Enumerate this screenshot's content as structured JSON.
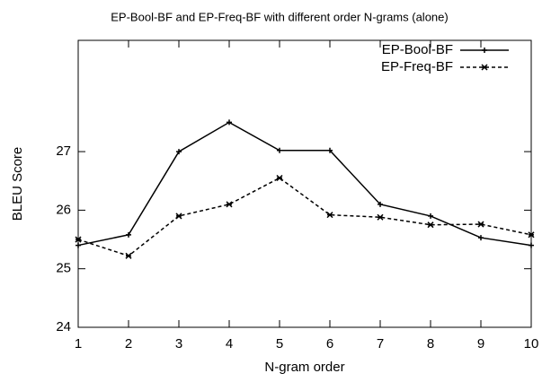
{
  "chart_data": {
    "type": "line",
    "title": "EP-Bool-BF and EP-Freq-BF with different order N-grams (alone)",
    "x_label": "N-gram order",
    "y_label": "BLEU Score",
    "x": [
      1,
      2,
      3,
      4,
      5,
      6,
      7,
      8,
      9,
      10
    ],
    "series": [
      {
        "name": "EP-Bool-BF",
        "color": "#000000",
        "dash": "solid",
        "marker": "plus",
        "values": [
          25.4,
          25.58,
          27.0,
          27.5,
          27.02,
          27.02,
          26.1,
          25.9,
          25.53,
          25.4
        ]
      },
      {
        "name": "EP-Freq-BF",
        "color": "#000000",
        "dash": "dashed",
        "marker": "cross",
        "values": [
          25.5,
          25.22,
          25.9,
          26.1,
          26.55,
          25.92,
          25.88,
          25.75,
          25.76,
          25.58
        ]
      }
    ],
    "xlim": [
      1,
      10
    ],
    "xticks": [
      1,
      2,
      3,
      4,
      5,
      6,
      7,
      8,
      9,
      10
    ],
    "ylim": [
      24,
      28.9
    ],
    "yticks": [
      24,
      25,
      26,
      27
    ],
    "legend": "top-right",
    "grid": false
  }
}
